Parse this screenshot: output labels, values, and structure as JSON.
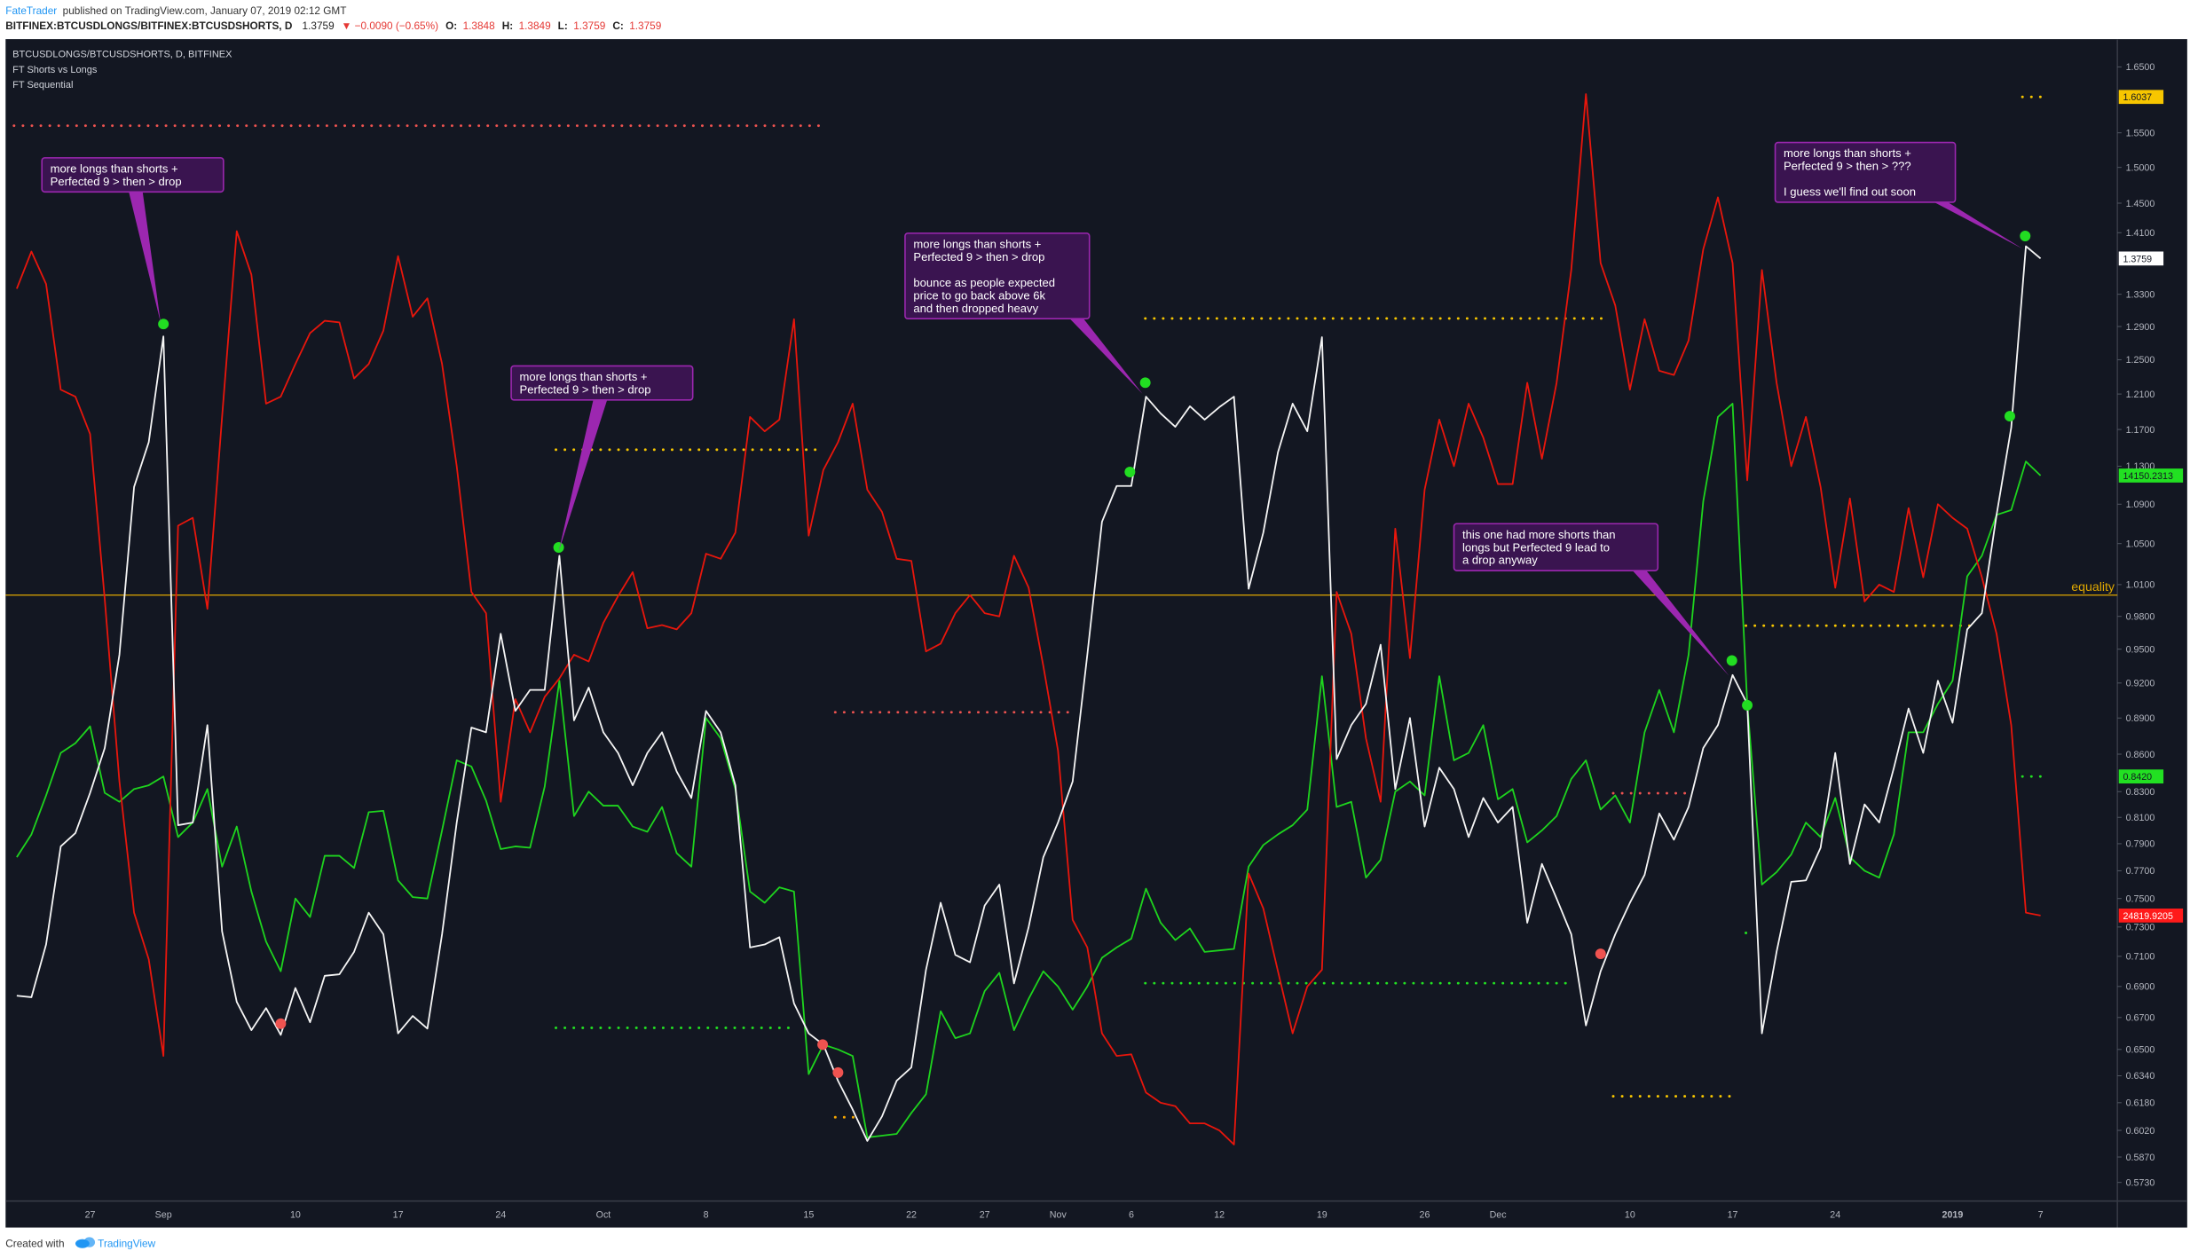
{
  "header": {
    "author": "FateTrader",
    "published": "published on TradingView.com, January 07, 2019 02:12 GMT",
    "symbol": "BITFINEX:BTCUSDLONGS/BITFINEX:BTCUSDSHORTS, D",
    "last": "1.3759",
    "change": "▼ −0.0090 (−0.65%)",
    "ohlc": [
      [
        "O:",
        "1.3848"
      ],
      [
        "H:",
        "1.3849"
      ],
      [
        "L:",
        "1.3759"
      ],
      [
        "C:",
        "1.3759"
      ]
    ]
  },
  "footer": {
    "created": "Created with",
    "brand": "TradingView"
  },
  "chart_data": {
    "type": "line",
    "log_scale": true,
    "grid": false,
    "legend": [
      "FT Shorts vs Longs",
      "FT Sequential"
    ],
    "categories": [
      null,
      null,
      null,
      null,
      null,
      "27",
      null,
      null,
      null,
      null,
      "Sep",
      null,
      null,
      null,
      null,
      null,
      null,
      null,
      null,
      "10",
      null,
      null,
      null,
      null,
      null,
      null,
      "17",
      null,
      null,
      null,
      null,
      null,
      null,
      "24",
      null,
      null,
      null,
      null,
      null,
      null,
      "Oct",
      null,
      null,
      null,
      null,
      null,
      null,
      "8",
      null,
      null,
      null,
      null,
      null,
      null,
      "15",
      null,
      null,
      null,
      null,
      null,
      null,
      "22",
      null,
      null,
      null,
      null,
      "27",
      null,
      null,
      null,
      null,
      "Nov",
      null,
      null,
      null,
      null,
      "6",
      null,
      null,
      null,
      null,
      null,
      "12",
      null,
      null,
      null,
      null,
      null,
      null,
      "19",
      null,
      null,
      null,
      null,
      null,
      null,
      "26",
      null,
      null,
      null,
      null,
      "Dec",
      null,
      null,
      null,
      null,
      null,
      null,
      null,
      null,
      "10",
      null,
      null,
      null,
      null,
      null,
      null,
      "17",
      null,
      null,
      null,
      null,
      null,
      null,
      "24",
      null,
      null,
      null,
      null,
      null,
      null,
      null,
      "2019",
      null,
      null,
      null,
      null,
      null,
      "7"
    ],
    "series": [
      {
        "name": "BTCUSDLONGS/BTCUSDSHORTS, D, BITFINEX",
        "color": "#f5f5f5",
        "label_fill": "#ffffff",
        "label_text": "#131722",
        "values": [
          0.684,
          0.683,
          0.718,
          0.788,
          0.798,
          0.829,
          0.865,
          0.945,
          1.108,
          1.156,
          1.278,
          0.804,
          0.806,
          0.884,
          0.727,
          0.68,
          0.662,
          0.676,
          0.659,
          0.689,
          0.667,
          0.697,
          0.698,
          0.713,
          0.74,
          0.725,
          0.66,
          0.671,
          0.663,
          0.725,
          0.806,
          0.882,
          0.878,
          0.964,
          0.896,
          0.914,
          0.914,
          1.038,
          0.888,
          0.916,
          0.878,
          0.861,
          0.835,
          0.861,
          0.878,
          0.846,
          0.825,
          0.896,
          0.878,
          0.835,
          0.716,
          0.718,
          0.723,
          0.679,
          0.66,
          0.653,
          0.631,
          0.614,
          0.596,
          0.61,
          0.631,
          0.639,
          0.701,
          0.747,
          0.711,
          0.706,
          0.745,
          0.76,
          0.692,
          0.73,
          0.78,
          0.806,
          0.838,
          0.945,
          1.072,
          1.109,
          1.109,
          1.207,
          1.188,
          1.173,
          1.196,
          1.181,
          1.195,
          1.207,
          1.006,
          1.061,
          1.145,
          1.199,
          1.168,
          1.277,
          0.856,
          0.884,
          0.902,
          0.954,
          0.832,
          0.89,
          0.803,
          0.849,
          0.832,
          0.795,
          0.825,
          0.806,
          0.818,
          0.733,
          0.775,
          0.75,
          0.725,
          0.665,
          0.7,
          0.725,
          0.747,
          0.767,
          0.813,
          0.793,
          0.818,
          0.865,
          0.884,
          0.927,
          0.902,
          0.66,
          0.713,
          0.762,
          0.763,
          0.787,
          0.861,
          0.775,
          0.82,
          0.806,
          0.849,
          0.898,
          0.861,
          0.922,
          0.886,
          0.968,
          0.983,
          1.079,
          1.172,
          1.392,
          1.3759
        ]
      },
      {
        "color": "#e8160c",
        "label_fill": "#ff1a1a",
        "label_text": "#ffffff",
        "last_label": "24819.9205",
        "values": [
          1.337,
          1.385,
          1.343,
          1.215,
          1.207,
          1.165,
          0.996,
          0.838,
          0.74,
          0.708,
          0.646,
          1.068,
          1.076,
          0.987,
          1.184,
          1.412,
          1.355,
          1.199,
          1.207,
          1.245,
          1.282,
          1.297,
          1.295,
          1.228,
          1.245,
          1.285,
          1.379,
          1.302,
          1.325,
          1.245,
          1.13,
          1.003,
          0.983,
          0.822,
          0.906,
          0.878,
          0.908,
          0.924,
          0.945,
          0.939,
          0.974,
          0.999,
          1.022,
          0.969,
          0.972,
          0.968,
          0.983,
          1.04,
          1.035,
          1.061,
          1.184,
          1.168,
          1.181,
          1.299,
          1.058,
          1.126,
          1.156,
          1.199,
          1.105,
          1.082,
          1.035,
          1.033,
          0.948,
          0.955,
          0.983,
          1.0,
          0.983,
          0.98,
          1.038,
          1.007,
          0.935,
          0.863,
          0.735,
          0.716,
          0.66,
          0.646,
          0.647,
          0.624,
          0.618,
          0.616,
          0.606,
          0.606,
          0.602,
          0.594,
          0.768,
          0.743,
          0.7,
          0.66,
          0.69,
          0.701,
          1.003,
          0.964,
          0.873,
          0.822,
          1.065,
          0.942,
          1.105,
          1.181,
          1.13,
          1.199,
          1.161,
          1.111,
          1.111,
          1.223,
          1.138,
          1.223,
          1.361,
          1.608,
          1.37,
          1.316,
          1.215,
          1.299,
          1.237,
          1.232,
          1.273,
          1.388,
          1.458,
          1.37,
          1.115,
          1.361,
          1.223,
          1.13,
          1.184,
          1.108,
          1.007,
          1.096,
          0.994,
          1.01,
          1.003,
          1.086,
          1.017,
          1.09,
          1.076,
          1.065,
          1.017,
          0.964,
          0.884,
          0.74,
          0.738
        ]
      },
      {
        "color": "#1ed41e",
        "label_fill": "#22e022",
        "label_text": "#131722",
        "last_label": "14150.2313",
        "values": [
          0.78,
          0.797,
          0.827,
          0.861,
          0.869,
          0.883,
          0.829,
          0.822,
          0.832,
          0.835,
          0.842,
          0.795,
          0.806,
          0.832,
          0.773,
          0.803,
          0.755,
          0.72,
          0.7,
          0.75,
          0.737,
          0.781,
          0.781,
          0.772,
          0.814,
          0.815,
          0.763,
          0.751,
          0.75,
          0.8,
          0.855,
          0.85,
          0.823,
          0.786,
          0.788,
          0.787,
          0.834,
          0.922,
          0.811,
          0.83,
          0.819,
          0.819,
          0.803,
          0.799,
          0.818,
          0.783,
          0.773,
          0.89,
          0.873,
          0.832,
          0.755,
          0.747,
          0.758,
          0.755,
          0.635,
          0.653,
          0.65,
          0.646,
          0.598,
          0.599,
          0.6,
          0.612,
          0.623,
          0.674,
          0.657,
          0.66,
          0.687,
          0.699,
          0.662,
          0.682,
          0.7,
          0.69,
          0.675,
          0.69,
          0.709,
          0.716,
          0.722,
          0.757,
          0.733,
          0.721,
          0.729,
          0.713,
          0.714,
          0.715,
          0.773,
          0.789,
          0.797,
          0.804,
          0.816,
          0.926,
          0.818,
          0.822,
          0.765,
          0.778,
          0.83,
          0.838,
          0.827,
          0.926,
          0.855,
          0.861,
          0.884,
          0.824,
          0.832,
          0.791,
          0.8,
          0.811,
          0.84,
          0.855,
          0.816,
          0.827,
          0.806,
          0.878,
          0.914,
          0.878,
          0.945,
          1.093,
          1.184,
          1.199,
          0.902,
          0.76,
          0.769,
          0.782,
          0.806,
          0.795,
          0.825,
          0.78,
          0.77,
          0.765,
          0.797,
          0.878,
          0.878,
          0.902,
          0.922,
          1.018,
          1.038,
          1.079,
          1.084,
          1.135,
          1.12
        ]
      }
    ],
    "levels": [
      {
        "value": 1.6037,
        "color": "#f7c600"
      },
      {
        "value": 0.842,
        "label": "0.8420",
        "color": "#22e022"
      }
    ],
    "equality": {
      "label": "equality",
      "value": 1,
      "color": "#e0a800"
    },
    "ylim": [
      0.563,
      1.694
    ],
    "yticks": [
      {
        "value": 1.65,
        "label": "1.6500"
      },
      {
        "value": 1.55,
        "label": "1.5500"
      },
      {
        "value": 1.5,
        "label": "1.5000"
      },
      {
        "value": 1.45,
        "label": "1.4500"
      },
      {
        "value": 1.41,
        "label": "1.4100"
      },
      {
        "value": 1.33,
        "label": "1.3300"
      },
      {
        "value": 1.29,
        "label": "1.2900"
      },
      {
        "value": 1.25,
        "label": "1.2500"
      },
      {
        "value": 1.21,
        "label": "1.2100"
      },
      {
        "value": 1.17,
        "label": "1.1700"
      },
      {
        "value": 1.13,
        "label": "1.1300"
      },
      {
        "value": 1.09,
        "label": "1.0900"
      },
      {
        "value": 1.05,
        "label": "1.0500"
      },
      {
        "value": 1.01,
        "label": "1.0100"
      },
      {
        "value": 0.98,
        "label": "0.9800"
      },
      {
        "value": 0.95,
        "label": "0.9500"
      },
      {
        "value": 0.92,
        "label": "0.9200"
      },
      {
        "value": 0.89,
        "label": "0.8900"
      },
      {
        "value": 0.86,
        "label": "0.8600"
      },
      {
        "value": 0.83,
        "label": "0.8300"
      },
      {
        "value": 0.81,
        "label": "0.8100"
      },
      {
        "value": 0.79,
        "label": "0.7900"
      },
      {
        "value": 0.77,
        "label": "0.7700"
      },
      {
        "value": 0.75,
        "label": "0.7500"
      },
      {
        "value": 0.73,
        "label": "0.7300"
      },
      {
        "value": 0.71,
        "label": "0.7100"
      },
      {
        "value": 0.69,
        "label": "0.6900"
      },
      {
        "value": 0.67,
        "label": "0.6700"
      },
      {
        "value": 0.65,
        "label": "0.6500"
      },
      {
        "value": 0.634,
        "label": "0.6340"
      },
      {
        "value": 0.618,
        "label": "0.6180"
      },
      {
        "value": 0.602,
        "label": "0.6020"
      },
      {
        "value": 0.587,
        "label": "0.5870"
      },
      {
        "value": 0.573,
        "label": "0.5730"
      }
    ],
    "annotations": [
      {
        "paragraphs": [
          [
            "more longs than shorts +",
            "Perfected 9 > then > drop"
          ]
        ]
      },
      {
        "paragraphs": [
          [
            "more longs than shorts +",
            "Perfected 9 > then > drop"
          ]
        ]
      },
      {
        "paragraphs": [
          [
            "more longs than shorts +",
            "Perfected 9 > then > drop"
          ],
          [
            "bounce as people expected",
            "price to go back above 6k",
            "and then dropped heavy"
          ]
        ]
      },
      {
        "paragraphs": [
          [
            "this one had more shorts than",
            "longs but Perfected 9 lead to",
            "a drop anyway"
          ]
        ]
      },
      {
        "paragraphs": [
          [
            "more longs than shorts +",
            "Perfected 9 > then > ???"
          ],
          [
            "I guess we'll find out soon"
          ]
        ]
      }
    ]
  }
}
